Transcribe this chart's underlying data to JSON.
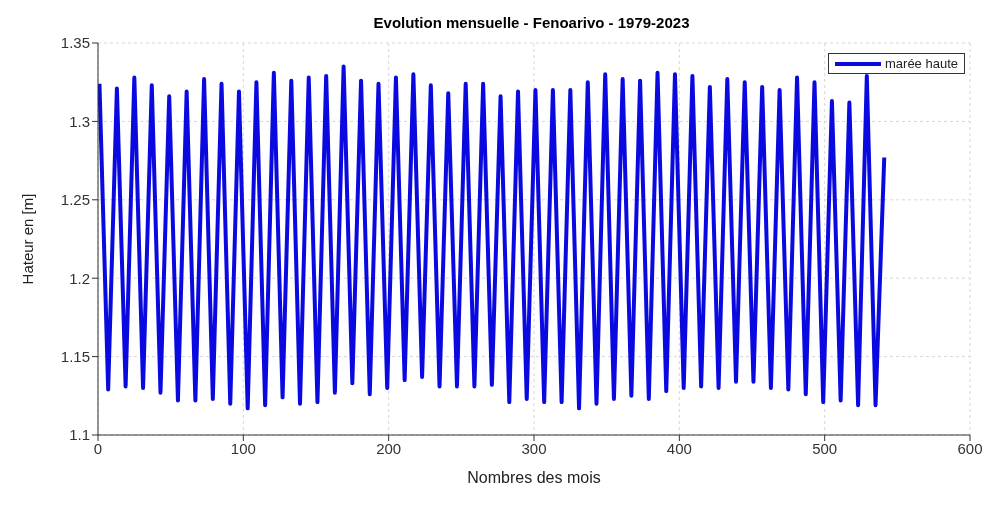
{
  "chart_data": {
    "type": "line",
    "title": "Evolution mensuelle - Fenoarivo - 1979-2023",
    "xlabel": "Nombres des mois",
    "ylabel": "Hateur en [m]",
    "x": [
      1,
      7,
      13,
      19,
      25,
      31,
      37,
      43,
      49,
      55,
      61,
      67,
      73,
      79,
      85,
      91,
      97,
      103,
      109,
      115,
      121,
      127,
      133,
      139,
      145,
      151,
      157,
      163,
      169,
      175,
      181,
      187,
      193,
      199,
      205,
      211,
      217,
      223,
      229,
      235,
      241,
      247,
      253,
      259,
      265,
      271,
      277,
      283,
      289,
      295,
      301,
      307,
      313,
      319,
      325,
      331,
      337,
      343,
      349,
      355,
      361,
      367,
      373,
      379,
      385,
      391,
      397,
      403,
      409,
      415,
      421,
      427,
      433,
      439,
      445,
      451,
      457,
      463,
      469,
      475,
      481,
      487,
      493,
      499,
      505,
      511,
      517,
      523,
      529,
      535,
      541
    ],
    "series": [
      {
        "name": "marée haute",
        "color": "#0a0ae0",
        "values": [
          1.324,
          1.129,
          1.321,
          1.131,
          1.328,
          1.13,
          1.323,
          1.127,
          1.316,
          1.122,
          1.319,
          1.122,
          1.327,
          1.123,
          1.324,
          1.12,
          1.319,
          1.117,
          1.325,
          1.119,
          1.331,
          1.124,
          1.326,
          1.12,
          1.328,
          1.121,
          1.329,
          1.127,
          1.335,
          1.133,
          1.326,
          1.126,
          1.324,
          1.13,
          1.328,
          1.135,
          1.33,
          1.137,
          1.323,
          1.131,
          1.318,
          1.131,
          1.324,
          1.131,
          1.324,
          1.132,
          1.316,
          1.121,
          1.319,
          1.123,
          1.32,
          1.121,
          1.32,
          1.121,
          1.32,
          1.117,
          1.325,
          1.12,
          1.33,
          1.123,
          1.327,
          1.125,
          1.326,
          1.123,
          1.331,
          1.128,
          1.33,
          1.13,
          1.329,
          1.131,
          1.322,
          1.13,
          1.327,
          1.134,
          1.325,
          1.134,
          1.322,
          1.13,
          1.32,
          1.129,
          1.328,
          1.126,
          1.325,
          1.121,
          1.313,
          1.122,
          1.312,
          1.119,
          1.329,
          1.119,
          1.277
        ]
      }
    ],
    "xlim": [
      0,
      600
    ],
    "xticks": [
      0,
      100,
      200,
      300,
      400,
      500,
      600
    ],
    "ylim": [
      1.1,
      1.35
    ],
    "yticks": [
      1.1,
      1.15,
      1.2,
      1.25,
      1.3,
      1.35
    ],
    "grid": true,
    "legend": "top right",
    "line_style": "solid"
  }
}
